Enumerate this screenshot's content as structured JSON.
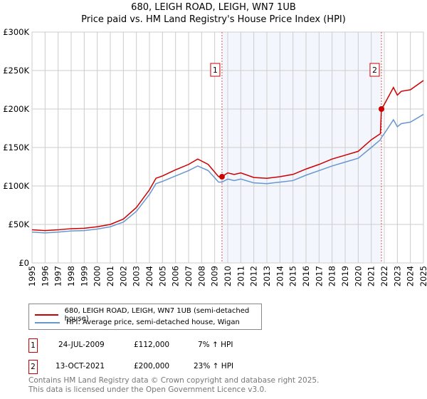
{
  "chart_data": {
    "type": "line",
    "title": "680, LEIGH ROAD, LEIGH, WN7 1UB",
    "subtitle": "Price paid vs. HM Land Registry's House Price Index (HPI)",
    "xlim": [
      1995,
      2025
    ],
    "ylim": [
      0,
      300000
    ],
    "x_ticks": [
      "1995",
      "1996",
      "1997",
      "1998",
      "1999",
      "2000",
      "2001",
      "2002",
      "2003",
      "2004",
      "2005",
      "2006",
      "2007",
      "2008",
      "2009",
      "2010",
      "2011",
      "2012",
      "2013",
      "2014",
      "2015",
      "2016",
      "2017",
      "2018",
      "2019",
      "2020",
      "2021",
      "2022",
      "2023",
      "2024",
      "2025"
    ],
    "y_ticks": [
      {
        "v": 0,
        "label": "£0"
      },
      {
        "v": 50000,
        "label": "£50K"
      },
      {
        "v": 100000,
        "label": "£100K"
      },
      {
        "v": 150000,
        "label": "£150K"
      },
      {
        "v": 200000,
        "label": "£200K"
      },
      {
        "v": 250000,
        "label": "£250K"
      },
      {
        "v": 300000,
        "label": "£300K"
      }
    ],
    "grid": true,
    "series": [
      {
        "name": "680, LEIGH ROAD, LEIGH, WN7 1UB (semi-detached house)",
        "color": "#cc0000",
        "x": [
          1995,
          1996,
          1997,
          1998,
          1999,
          2000,
          2001,
          2002,
          2003,
          2004,
          2004.5,
          2005,
          2006,
          2007,
          2007.7,
          2008.5,
          2009.3,
          2009.56,
          2010,
          2010.5,
          2011,
          2012,
          2013,
          2014,
          2015,
          2016,
          2017,
          2018,
          2019,
          2020,
          2021,
          2021.7,
          2021.78,
          2022,
          2022.7,
          2023,
          2023.3,
          2024,
          2025
        ],
        "y": [
          43000,
          42000,
          43000,
          44500,
          45000,
          47000,
          50000,
          57000,
          72000,
          95000,
          110000,
          113000,
          121000,
          128000,
          135000,
          128000,
          112000,
          112000,
          117000,
          115000,
          117000,
          111000,
          110000,
          112000,
          115000,
          122000,
          128000,
          135000,
          140000,
          145000,
          160000,
          168000,
          200000,
          206000,
          228000,
          218000,
          223000,
          225000,
          237000
        ]
      },
      {
        "name": "HPI: Average price, semi-detached house, Wigan",
        "color": "#6a96d0",
        "x": [
          1995,
          1996,
          1997,
          1998,
          1999,
          2000,
          2001,
          2002,
          2003,
          2004,
          2004.5,
          2005,
          2006,
          2007,
          2007.7,
          2008.5,
          2009.3,
          2009.56,
          2010,
          2010.5,
          2011,
          2012,
          2013,
          2014,
          2015,
          2016,
          2017,
          2018,
          2019,
          2020,
          2021,
          2021.7,
          2021.78,
          2022,
          2022.7,
          2023,
          2023.3,
          2024,
          2025
        ],
        "y": [
          40000,
          39000,
          40000,
          41500,
          42000,
          44000,
          47000,
          53000,
          67000,
          89000,
          103000,
          106000,
          113000,
          120000,
          126000,
          120000,
          105000,
          105000,
          109000,
          107000,
          109000,
          104000,
          103000,
          105000,
          107000,
          114000,
          120000,
          126000,
          131000,
          136000,
          150000,
          160000,
          163000,
          168000,
          186000,
          177000,
          181000,
          183000,
          193000
        ]
      }
    ],
    "sales": [
      {
        "label": "1",
        "x": 2009.56,
        "y": 112000
      },
      {
        "label": "2",
        "x": 2021.78,
        "y": 200000
      }
    ],
    "legend_position": "bottom"
  },
  "legend": {
    "red": "680, LEIGH ROAD, LEIGH, WN7 1UB (semi-detached house)",
    "blue": "HPI: Average price, semi-detached house, Wigan"
  },
  "transactions": [
    {
      "num": "1",
      "date": "24-JUL-2009",
      "price": "£112,000",
      "hpi": "7% ↑ HPI"
    },
    {
      "num": "2",
      "date": "13-OCT-2021",
      "price": "£200,000",
      "hpi": "23% ↑ HPI"
    }
  ],
  "footer": [
    "Contains HM Land Registry data © Crown copyright and database right 2025.",
    "This data is licensed under the Open Government Licence v3.0."
  ]
}
